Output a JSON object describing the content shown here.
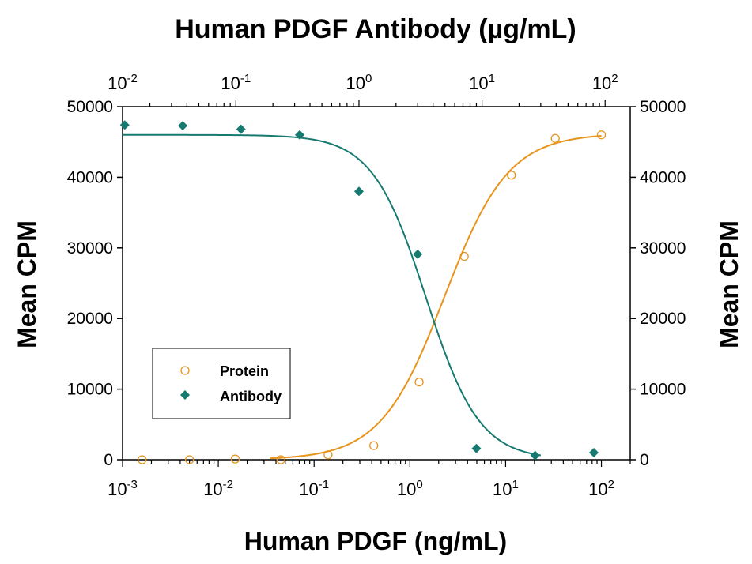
{
  "chart_data": {
    "type": "scatter",
    "title": "Human PDGF Antibody (µg/mL)",
    "xlabel": "Human PDGF (ng/mL)",
    "ylabel_left": "Mean CPM",
    "ylabel_right": "Mean CPM",
    "x_scale": "log",
    "xlim": [
      0.001,
      200
    ],
    "x_ticks": [
      0.001,
      0.01,
      0.1,
      1,
      10,
      100
    ],
    "x_tick_bases": [
      "10",
      "10",
      "10",
      "10",
      "10",
      "10"
    ],
    "x_tick_exps": [
      "-3",
      "-2",
      "-1",
      "0",
      "1",
      "2"
    ],
    "top_x_scale": "log",
    "top_xlim": [
      0.012,
      160
    ],
    "top_x_ticks": [
      0.01,
      0.1,
      1,
      10,
      100
    ],
    "top_x_tick_bases": [
      "10",
      "10",
      "10",
      "10",
      "10"
    ],
    "top_x_tick_exps": [
      "-2",
      "-1",
      "0",
      "1",
      "2"
    ],
    "ylim": [
      0,
      50000
    ],
    "y_ticks": [
      "0",
      "10000",
      "20000",
      "30000",
      "40000",
      "50000"
    ],
    "y_tick_values": [
      0,
      10000,
      20000,
      30000,
      40000,
      50000
    ],
    "legend_position": "lower-left",
    "series": [
      {
        "name": "Protein",
        "axis": "bottom",
        "marker": "open-circle",
        "color": "#E8941C",
        "x": [
          0.0016,
          0.005,
          0.015,
          0.045,
          0.14,
          0.42,
          1.25,
          3.7,
          11.5,
          33,
          100
        ],
        "y": [
          0,
          0,
          100,
          0,
          700,
          2000,
          11000,
          28800,
          40300,
          45500,
          46000
        ],
        "fit": {
          "bottom": 0,
          "top": 46200,
          "ec50": 2.3,
          "hill": 1.3
        }
      },
      {
        "name": "Antibody",
        "axis": "top",
        "marker": "filled-diamond",
        "color": "#167A70",
        "x": [
          0.0125,
          0.037,
          0.11,
          0.33,
          1.0,
          3.0,
          9.0,
          27,
          81
        ],
        "y": [
          47400,
          47300,
          46800,
          46000,
          38000,
          29100,
          1600,
          600,
          1000
        ],
        "fit": {
          "bottom": 0,
          "top": 46000,
          "ec50": 3.5,
          "hill": 2.0
        }
      }
    ]
  }
}
